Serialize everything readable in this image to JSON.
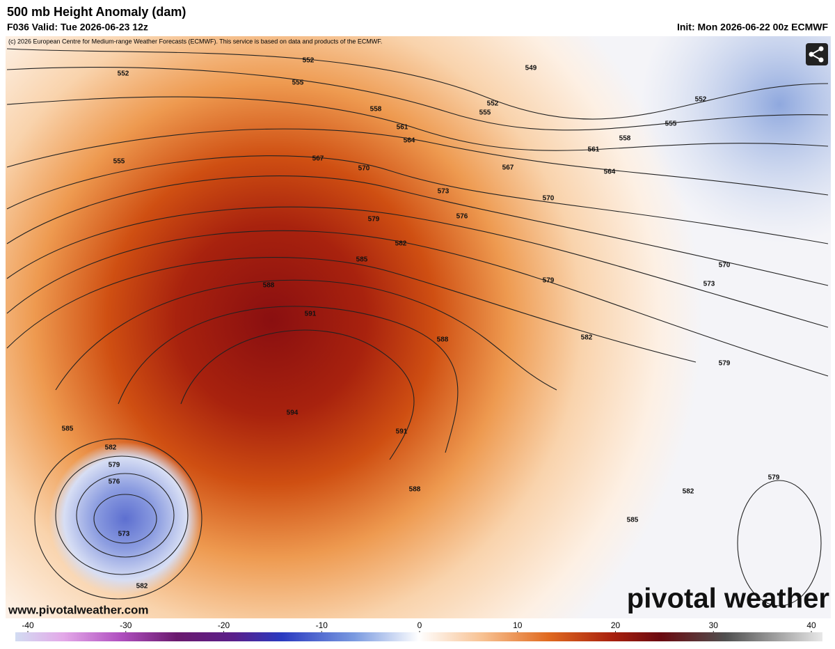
{
  "header": {
    "title": "500 mb Height Anomaly (dam)",
    "valid": "F036 Valid: Tue 2026-06-23 12z",
    "init": "Init: Mon 2026-06-22 00z ECMWF",
    "copyright": "(c) 2026 European Centre for Medium-range Weather Forecasts (ECMWF). This service is based on data and products of the ECMWF."
  },
  "map": {
    "contour_labels": [
      552,
      552,
      555,
      558,
      561,
      564,
      567,
      570,
      573,
      576,
      579,
      582,
      585,
      588,
      591,
      594,
      591,
      588,
      588,
      582,
      579,
      579,
      573,
      570,
      570,
      567,
      564,
      561,
      558,
      555,
      552,
      552,
      555,
      549,
      555,
      585,
      582,
      579,
      576,
      573,
      582,
      582,
      585,
      579
    ]
  },
  "footer": {
    "website": "www.pivotalweather.com",
    "logo": "pivotal weather"
  },
  "colorbar": {
    "ticks": [
      -40,
      -30,
      -20,
      -10,
      0,
      10,
      20,
      30,
      40
    ]
  }
}
